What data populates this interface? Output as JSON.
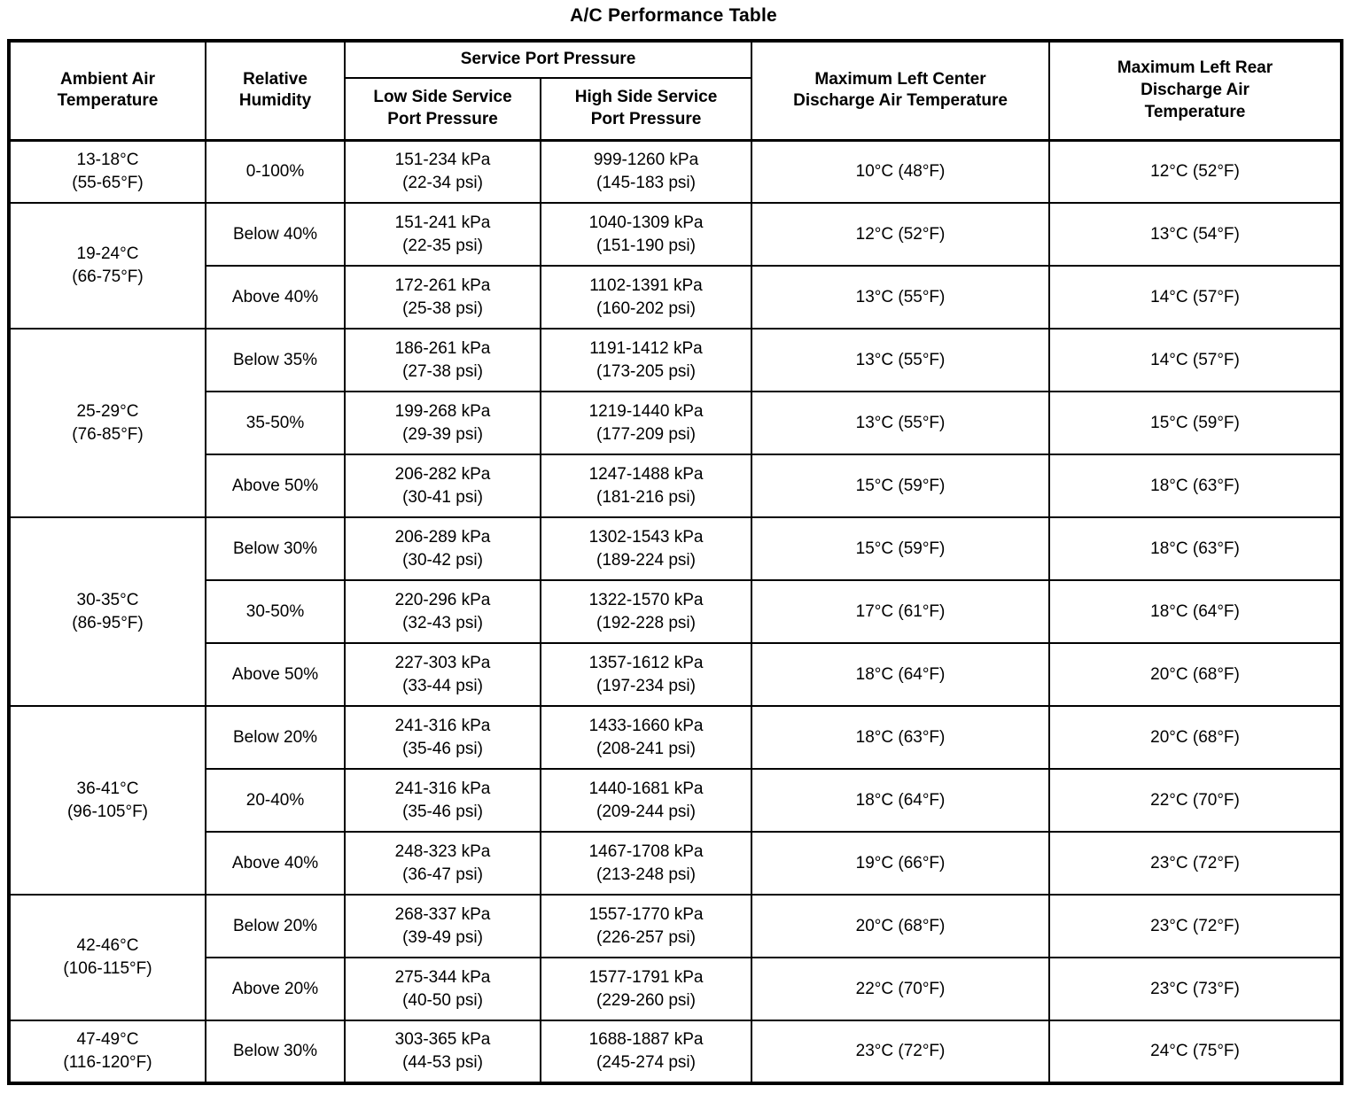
{
  "title": "A/C Performance Table",
  "table": {
    "headers": {
      "ambient": "Ambient Air\nTemperature",
      "humidity": "Relative\nHumidity",
      "service_group": "Service Port Pressure",
      "low_side": "Low Side Service\nPort Pressure",
      "high_side": "High Side Service\nPort Pressure",
      "max_left_center": "Maximum Left Center\nDischarge Air Temperature",
      "max_left_rear": "Maximum Left Rear\nDischarge Air\nTemperature"
    },
    "groups": [
      {
        "ambient": "13-18°C\n(55-65°F)",
        "rows": [
          {
            "humidity": "0-100%",
            "low": "151-234 kPa\n(22-34 psi)",
            "high": "999-1260 kPa\n(145-183 psi)",
            "center": "10°C (48°F)",
            "rear": "12°C (52°F)"
          }
        ]
      },
      {
        "ambient": "19-24°C\n(66-75°F)",
        "rows": [
          {
            "humidity": "Below 40%",
            "low": "151-241 kPa\n(22-35 psi)",
            "high": "1040-1309 kPa\n(151-190 psi)",
            "center": "12°C (52°F)",
            "rear": "13°C (54°F)"
          },
          {
            "humidity": "Above 40%",
            "low": "172-261 kPa\n(25-38 psi)",
            "high": "1102-1391 kPa\n(160-202 psi)",
            "center": "13°C (55°F)",
            "rear": "14°C (57°F)"
          }
        ]
      },
      {
        "ambient": "25-29°C\n(76-85°F)",
        "rows": [
          {
            "humidity": "Below 35%",
            "low": "186-261 kPa\n(27-38 psi)",
            "high": "1191-1412 kPa\n(173-205 psi)",
            "center": "13°C (55°F)",
            "rear": "14°C (57°F)"
          },
          {
            "humidity": "35-50%",
            "low": "199-268 kPa\n(29-39 psi)",
            "high": "1219-1440 kPa\n(177-209 psi)",
            "center": "13°C (55°F)",
            "rear": "15°C (59°F)"
          },
          {
            "humidity": "Above 50%",
            "low": "206-282 kPa\n(30-41 psi)",
            "high": "1247-1488 kPa\n(181-216 psi)",
            "center": "15°C (59°F)",
            "rear": "18°C (63°F)"
          }
        ]
      },
      {
        "ambient": "30-35°C\n(86-95°F)",
        "rows": [
          {
            "humidity": "Below 30%",
            "low": "206-289 kPa\n(30-42 psi)",
            "high": "1302-1543 kPa\n(189-224 psi)",
            "center": "15°C (59°F)",
            "rear": "18°C (63°F)"
          },
          {
            "humidity": "30-50%",
            "low": "220-296 kPa\n(32-43 psi)",
            "high": "1322-1570 kPa\n(192-228 psi)",
            "center": "17°C (61°F)",
            "rear": "18°C (64°F)"
          },
          {
            "humidity": "Above 50%",
            "low": "227-303 kPa\n(33-44 psi)",
            "high": "1357-1612 kPa\n(197-234 psi)",
            "center": "18°C (64°F)",
            "rear": "20°C (68°F)"
          }
        ]
      },
      {
        "ambient": "36-41°C\n(96-105°F)",
        "rows": [
          {
            "humidity": "Below 20%",
            "low": "241-316 kPa\n(35-46 psi)",
            "high": "1433-1660 kPa\n(208-241 psi)",
            "center": "18°C (63°F)",
            "rear": "20°C (68°F)"
          },
          {
            "humidity": "20-40%",
            "low": "241-316 kPa\n(35-46 psi)",
            "high": "1440-1681 kPa\n(209-244 psi)",
            "center": "18°C (64°F)",
            "rear": "22°C (70°F)"
          },
          {
            "humidity": "Above 40%",
            "low": "248-323 kPa\n(36-47 psi)",
            "high": "1467-1708 kPa\n(213-248 psi)",
            "center": "19°C (66°F)",
            "rear": "23°C (72°F)"
          }
        ]
      },
      {
        "ambient": "42-46°C\n(106-115°F)",
        "rows": [
          {
            "humidity": "Below 20%",
            "low": "268-337 kPa\n(39-49 psi)",
            "high": "1557-1770 kPa\n(226-257 psi)",
            "center": "20°C (68°F)",
            "rear": "23°C (72°F)"
          },
          {
            "humidity": "Above 20%",
            "low": "275-344 kPa\n(40-50 psi)",
            "high": "1577-1791 kPa\n(229-260 psi)",
            "center": "22°C (70°F)",
            "rear": "23°C (73°F)"
          }
        ]
      },
      {
        "ambient": "47-49°C\n(116-120°F)",
        "rows": [
          {
            "humidity": "Below 30%",
            "low": "303-365 kPa\n(44-53 psi)",
            "high": "1688-1887 kPa\n(245-274 psi)",
            "center": "23°C (72°F)",
            "rear": "24°C (75°F)"
          }
        ]
      }
    ]
  }
}
